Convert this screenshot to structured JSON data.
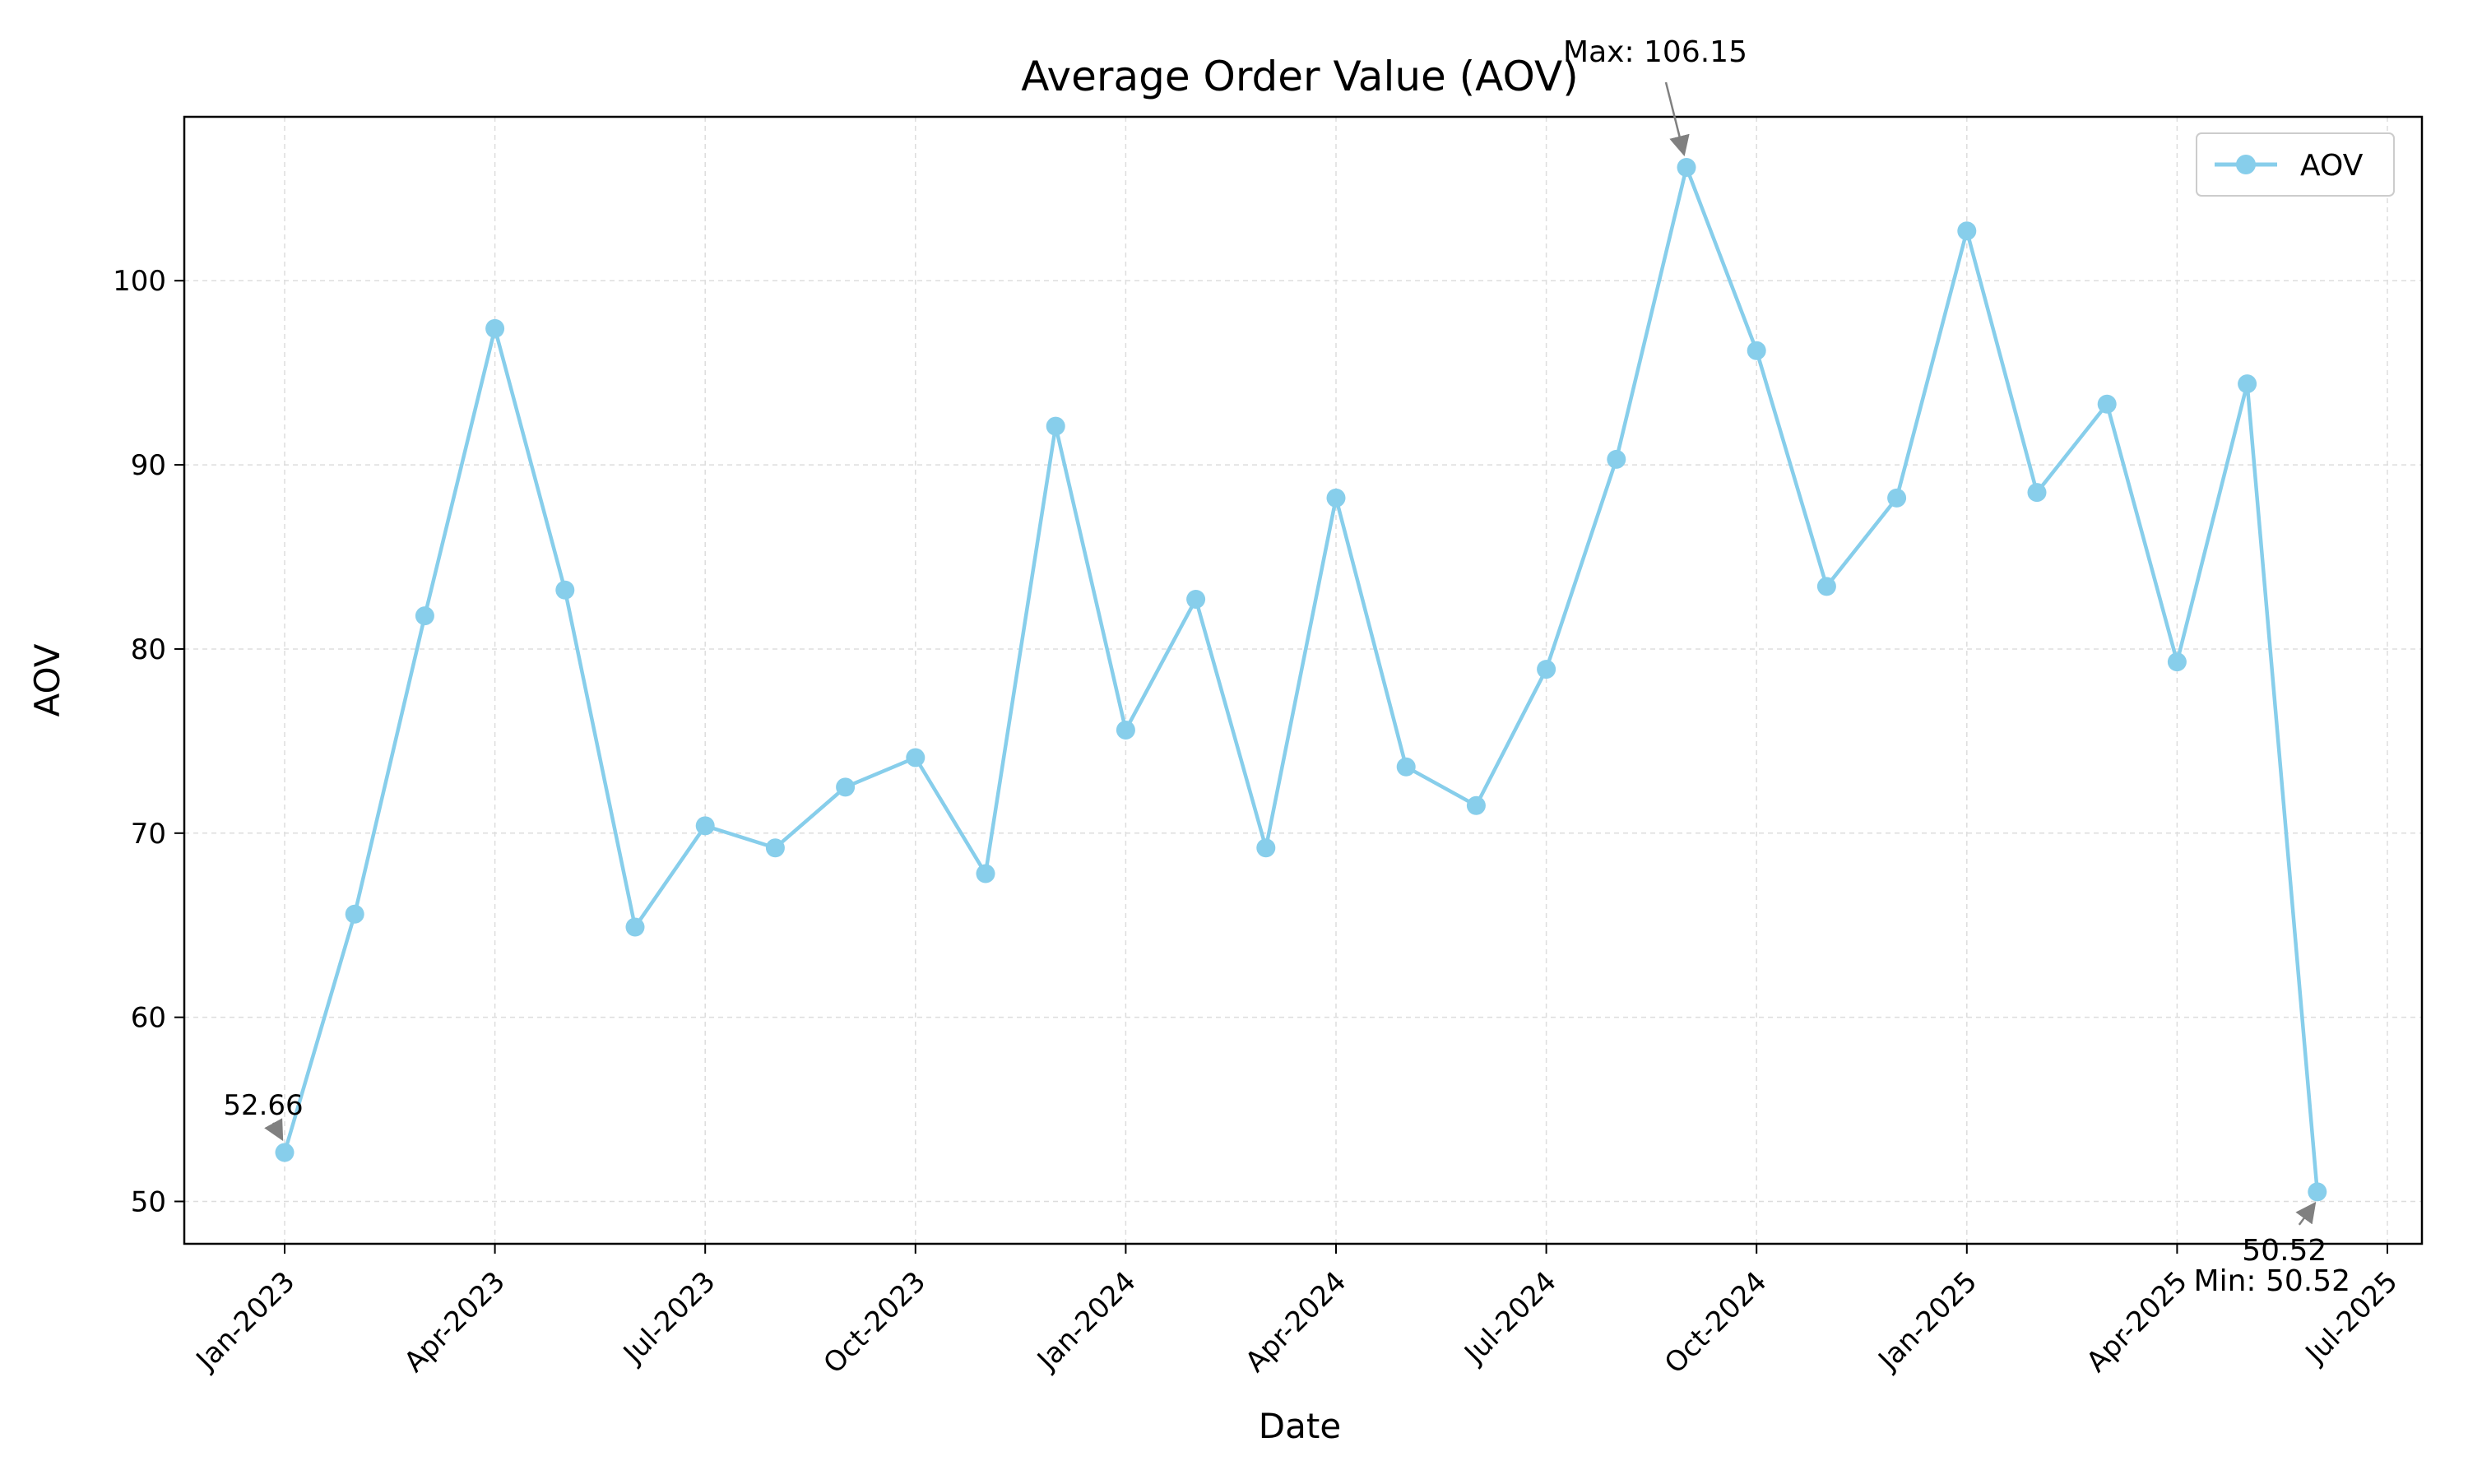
{
  "chart_data": {
    "type": "line",
    "title": "Average Order Value (AOV)",
    "xlabel": "Date",
    "ylabel": "AOV",
    "ylim": [
      47.7,
      108.9
    ],
    "yticks": [
      50,
      60,
      70,
      80,
      90,
      100
    ],
    "xticks": [
      {
        "label": "Jan-2023",
        "index": 0
      },
      {
        "label": "Apr-2023",
        "index": 3
      },
      {
        "label": "Jul-2023",
        "index": 6
      },
      {
        "label": "Oct-2023",
        "index": 9
      },
      {
        "label": "Jan-2024",
        "index": 12
      },
      {
        "label": "Apr-2024",
        "index": 15
      },
      {
        "label": "Jul-2024",
        "index": 18
      },
      {
        "label": "Oct-2024",
        "index": 21
      },
      {
        "label": "Jan-2025",
        "index": 24
      },
      {
        "label": "Apr-2025",
        "index": 27
      },
      {
        "label": "Jul-2025",
        "index": 30
      }
    ],
    "grid": true,
    "legend_position": "top-right",
    "series": [
      {
        "name": "AOV",
        "color": "#87CEEB",
        "x": [
          "2022-12-31",
          "2023-01-31",
          "2023-02-28",
          "2023-03-31",
          "2023-04-30",
          "2023-05-31",
          "2023-06-30",
          "2023-07-31",
          "2023-08-31",
          "2023-09-30",
          "2023-10-31",
          "2023-11-30",
          "2023-12-31",
          "2024-01-31",
          "2024-02-29",
          "2024-03-31",
          "2024-04-30",
          "2024-05-31",
          "2024-06-30",
          "2024-07-31",
          "2024-08-31",
          "2024-09-30",
          "2024-10-31",
          "2024-11-30",
          "2024-12-31",
          "2025-01-31",
          "2025-02-28",
          "2025-03-31",
          "2025-04-30",
          "2025-05-31"
        ],
        "values": [
          52.66,
          65.6,
          81.8,
          97.4,
          83.2,
          64.9,
          70.4,
          69.2,
          72.5,
          74.1,
          67.8,
          92.1,
          75.6,
          82.7,
          69.2,
          88.2,
          73.6,
          71.5,
          78.9,
          90.3,
          106.15,
          96.2,
          83.4,
          88.2,
          102.7,
          88.5,
          93.3,
          79.3,
          94.4,
          50.52
        ]
      }
    ],
    "annotations": {
      "first_label": "52.66",
      "max_label": "Max: 106.15",
      "min_value_label": "50.52",
      "min_label": "Min: 50.52"
    },
    "legend_label": "AOV"
  }
}
